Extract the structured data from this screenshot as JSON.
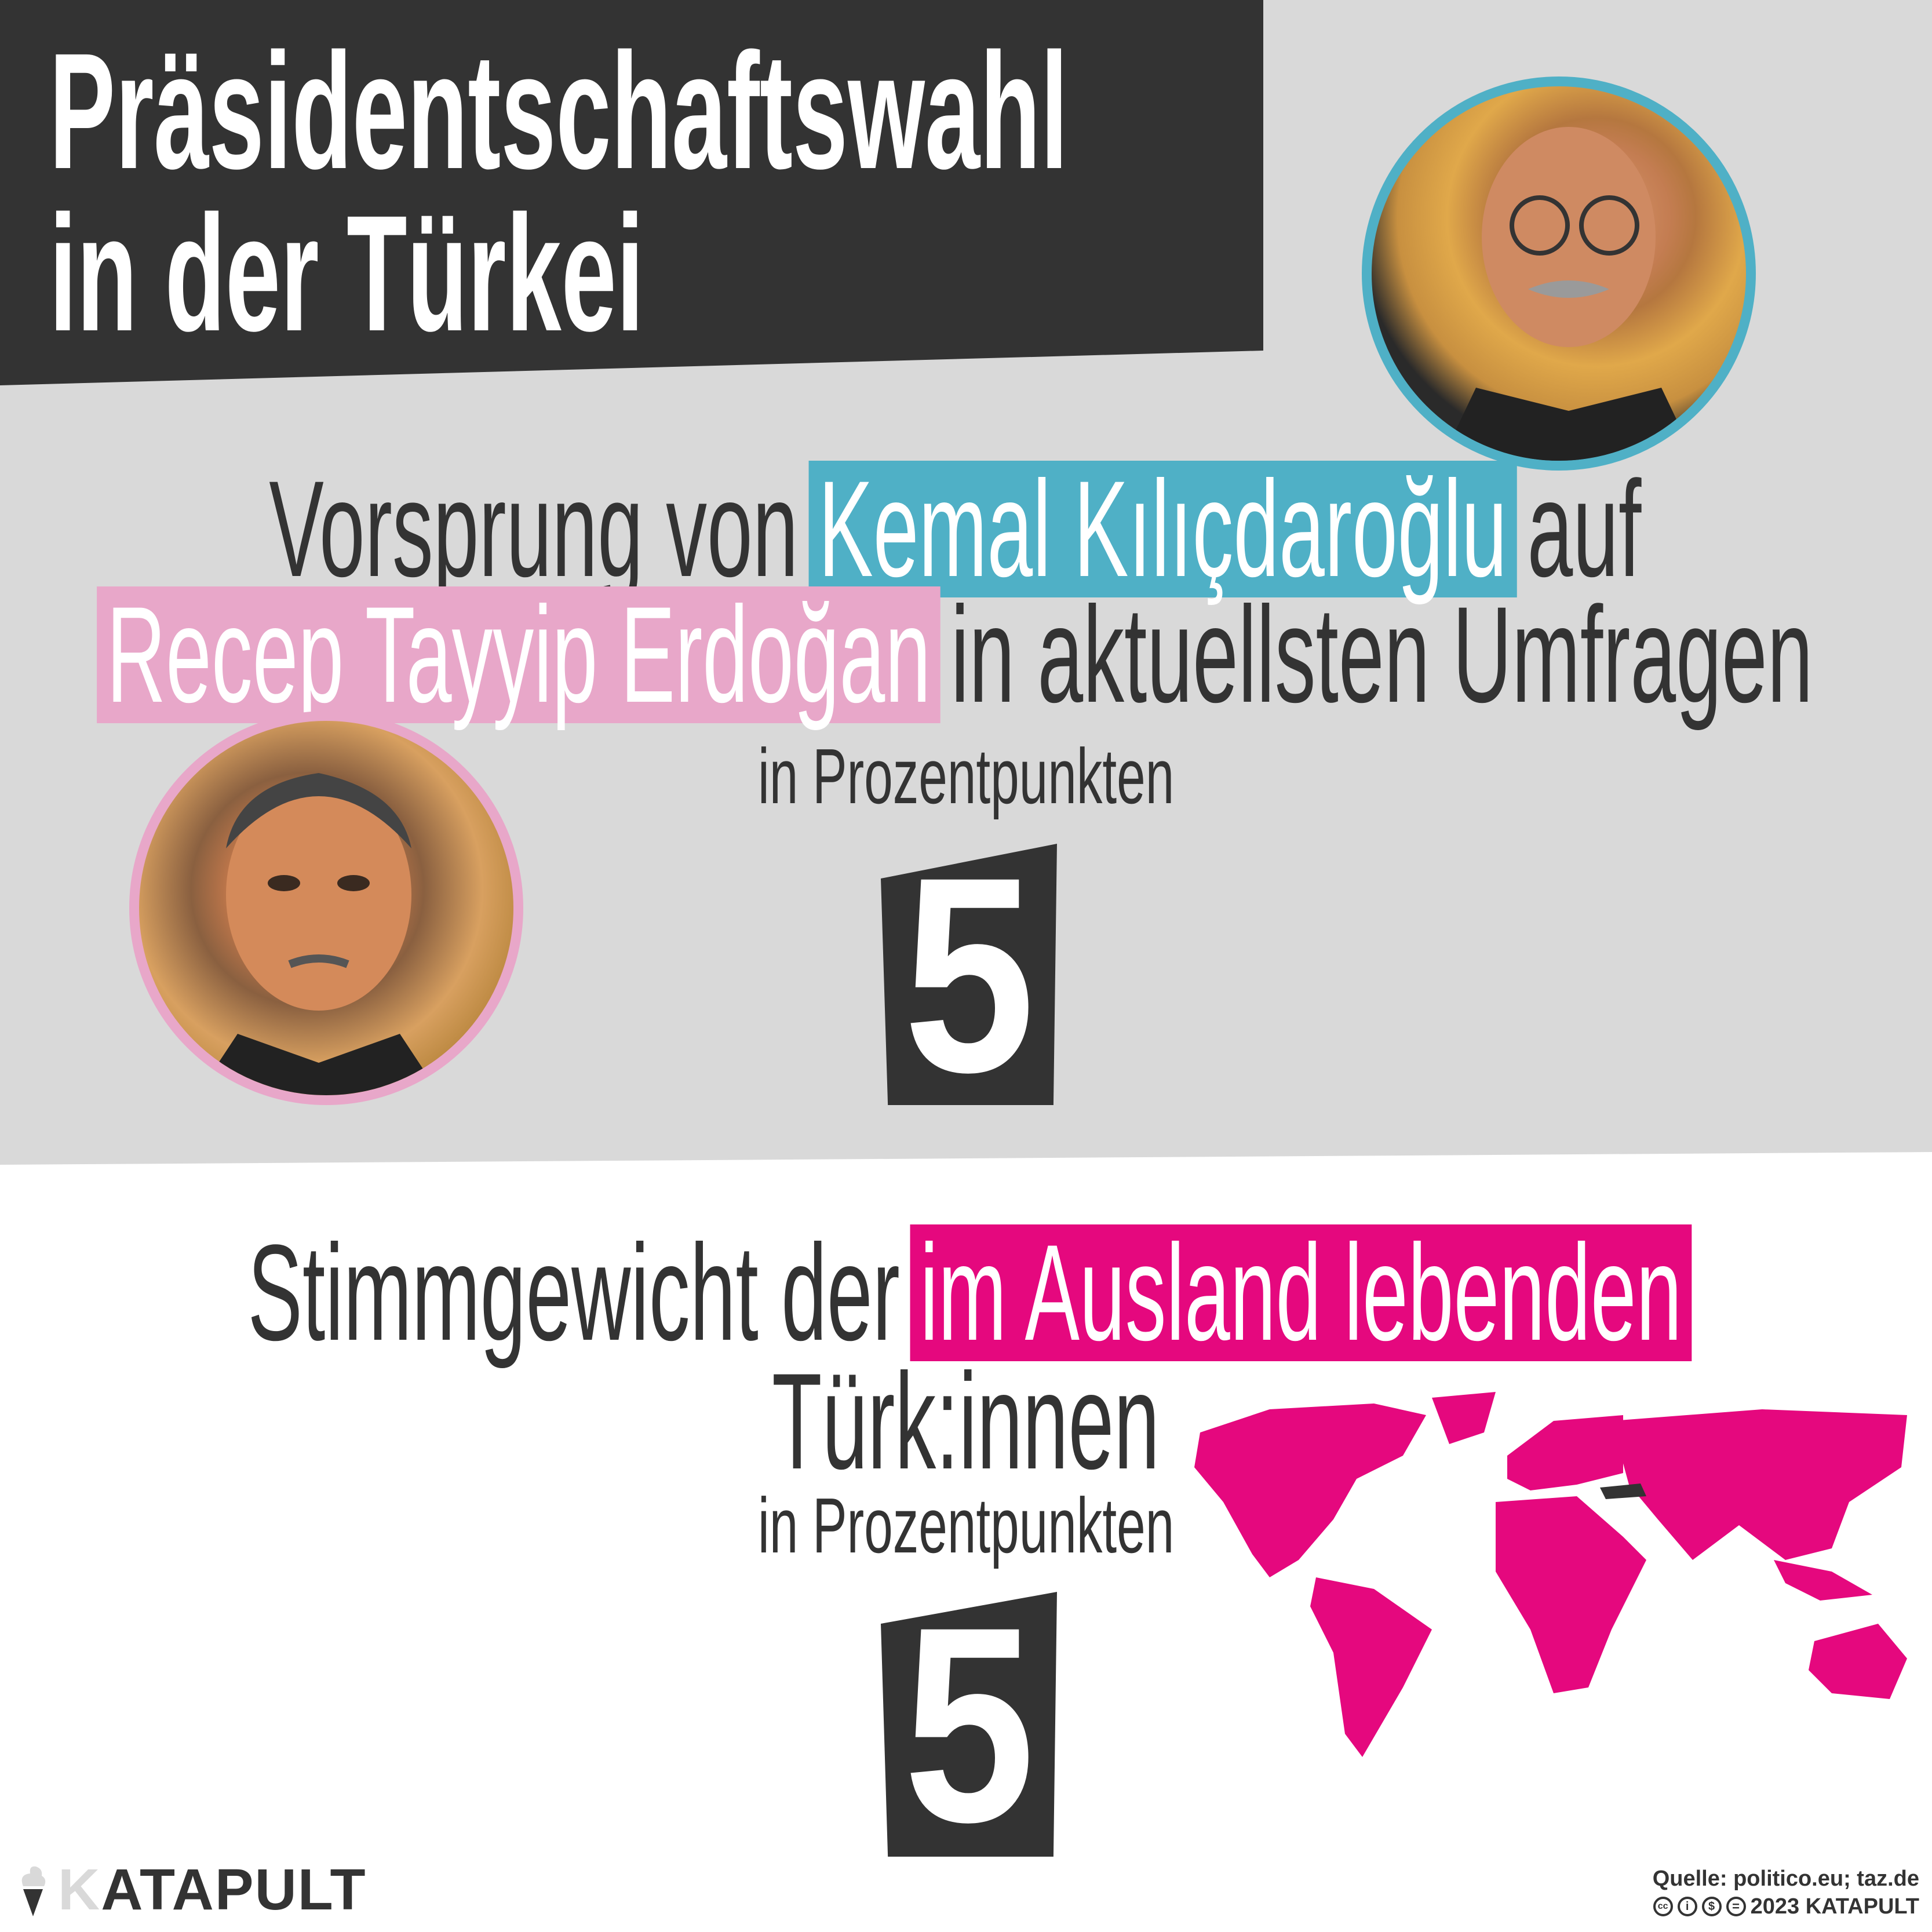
{
  "header": {
    "title_line1": "Präsidentschaftswahl",
    "title_line2": "in der Türkei"
  },
  "section1": {
    "text_before": "Vorsprung von",
    "candidate1": "Kemal Kılıçdaroğlu",
    "text_mid": "auf",
    "candidate2": "Recep Tayyip Erdoğan",
    "text_after": "in aktuellsten Umfragen",
    "unit": "in Prozentpunkten",
    "value": "5"
  },
  "section2": {
    "text_before": "Stimmgewicht der",
    "highlight": "im Ausland lebenden",
    "text_after": "Türk:innen",
    "unit": "in Prozentpunkten",
    "value": "5"
  },
  "footer": {
    "logo": "KATAPULT",
    "source": "Quelle: politico.eu; taz.de",
    "license": "2023 KATAPULT",
    "license_icons": [
      "cc-icon",
      "by-icon",
      "nc-icon",
      "nd-icon"
    ]
  },
  "colors": {
    "dark": "#333333",
    "grey": "#d9d9d9",
    "blue": "#4fb0c6",
    "pink": "#e8a7c9",
    "magenta": "#e5087e"
  }
}
